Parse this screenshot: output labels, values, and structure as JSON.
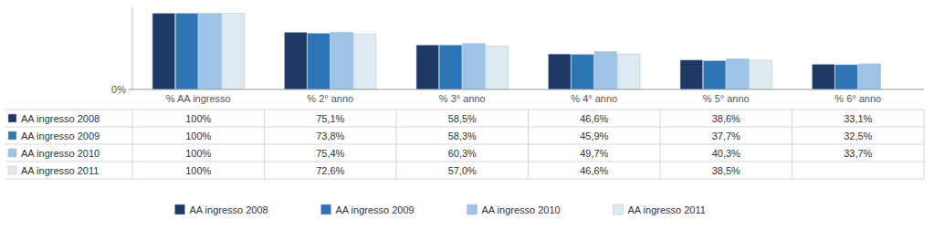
{
  "chart_data": {
    "type": "bar",
    "categories": [
      "% AA ingresso",
      "% 2° anno",
      "% 3° anno",
      "% 4° anno",
      "% 5° anno",
      "% 6° anno"
    ],
    "series": [
      {
        "name": "AA ingresso 2008",
        "color": "#1f3864",
        "values": [
          100.0,
          75.1,
          58.5,
          46.6,
          38.6,
          33.1
        ],
        "value_labels": [
          "100%",
          "75,1%",
          "58,5%",
          "46,6%",
          "38,6%",
          "33,1%"
        ]
      },
      {
        "name": "AA ingresso 2009",
        "color": "#2e75b6",
        "values": [
          100.0,
          73.8,
          58.3,
          45.9,
          37.7,
          32.5
        ],
        "value_labels": [
          "100%",
          "73,8%",
          "58,3%",
          "45,9%",
          "37,7%",
          "32,5%"
        ]
      },
      {
        "name": "AA ingresso 2010",
        "color": "#9dc3e6",
        "values": [
          100.0,
          75.4,
          60.3,
          49.7,
          40.3,
          33.7
        ],
        "value_labels": [
          "100%",
          "75,4%",
          "60,3%",
          "49,7%",
          "40,3%",
          "33,7%"
        ]
      },
      {
        "name": "AA ingresso 2011",
        "color": "#deeaf1",
        "values": [
          100.0,
          72.6,
          57.0,
          46.6,
          38.5,
          null
        ],
        "value_labels": [
          "100%",
          "72,6%",
          "57,0%",
          "46,6%",
          "38,5%",
          null
        ]
      }
    ],
    "ylim": [
      0,
      108
    ],
    "yticks": [
      {
        "value": 0,
        "label": "0%"
      }
    ],
    "grid": false,
    "legend": "bottom"
  }
}
